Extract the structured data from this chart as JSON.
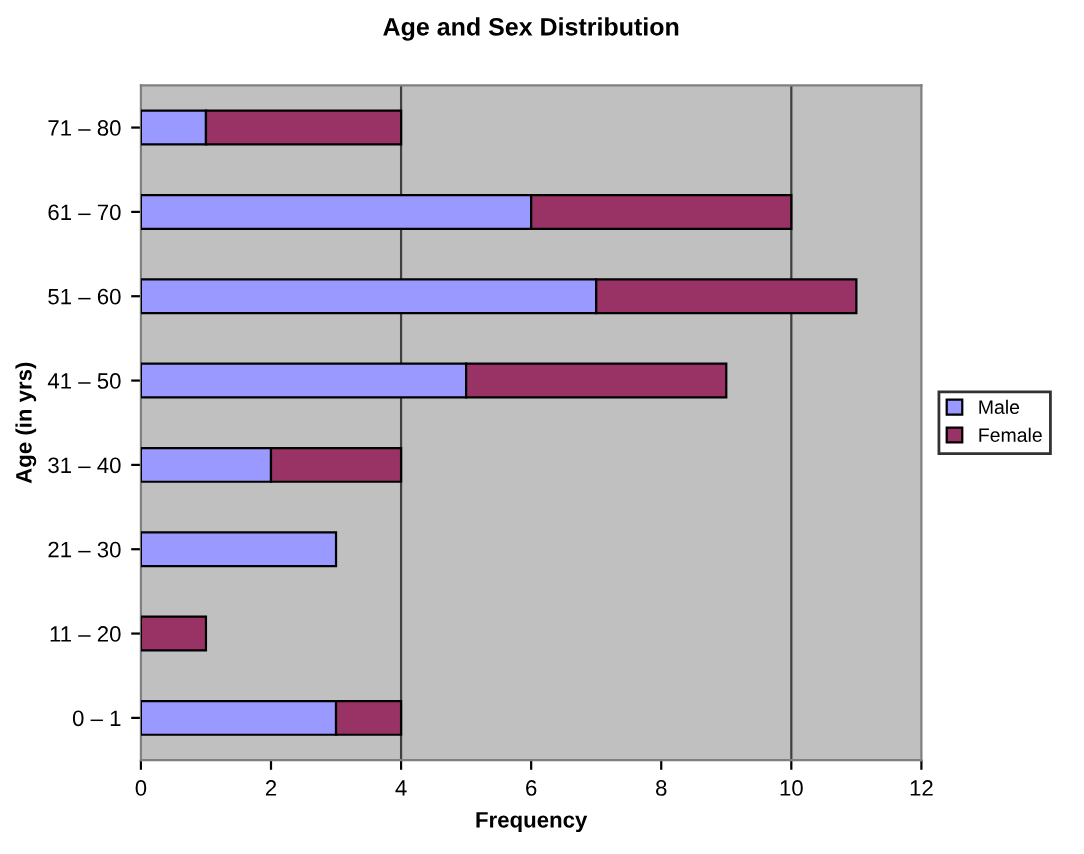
{
  "chart_data": {
    "type": "bar",
    "orientation": "horizontal",
    "stacked": true,
    "title": "Age and Sex Distribution",
    "xlabel": "Frequency",
    "ylabel": "Age (in yrs)",
    "categories": [
      "71 – 80",
      "61 – 70",
      "51 – 60",
      "41 – 50",
      "31 – 40",
      "21 – 30",
      "11 – 20",
      "0 – 1"
    ],
    "series": [
      {
        "name": "Male",
        "color": "#9999ff",
        "values": [
          1,
          6,
          7,
          5,
          2,
          3,
          0,
          3
        ]
      },
      {
        "name": "Female",
        "color": "#993366",
        "values": [
          3,
          4,
          4,
          4,
          2,
          0,
          1,
          1
        ]
      }
    ],
    "xlim": [
      0,
      12
    ],
    "xticks": [
      0,
      2,
      4,
      6,
      8,
      10,
      12
    ],
    "grid": false,
    "legend": "right",
    "ref_lines": [
      {
        "axis": "x",
        "value": 4,
        "color": "#404040"
      },
      {
        "axis": "x",
        "value": 10,
        "color": "#404040"
      }
    ]
  }
}
